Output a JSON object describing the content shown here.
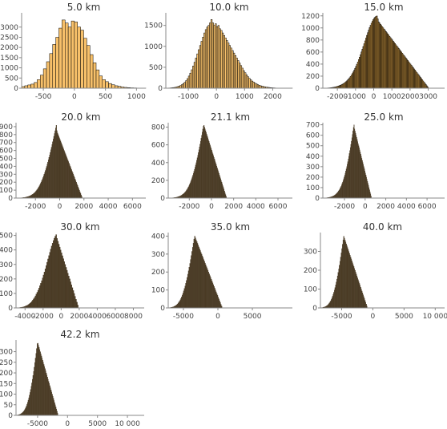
{
  "chart_data": [
    {
      "type": "bar",
      "title": "5.0 km",
      "fill": "#f7c06a",
      "xlim": [
        -850,
        1150
      ],
      "ylim": [
        0,
        3700
      ],
      "xticks": [
        -500,
        0,
        500,
        1000
      ],
      "xtick_labels": [
        "-500",
        "0",
        "500",
        "1000"
      ],
      "yticks": [
        0,
        500,
        1000,
        1500,
        2000,
        2500,
        3000
      ],
      "ytick_labels": [
        "0",
        "500",
        "1000",
        "1500",
        "2000",
        "2500",
        "3000"
      ],
      "bin_start": -850,
      "bin_width": 50,
      "values": [
        80,
        120,
        160,
        200,
        280,
        420,
        640,
        950,
        1300,
        1700,
        2150,
        2500,
        2950,
        3350,
        3200,
        3000,
        3300,
        3250,
        3000,
        2850,
        2450,
        2100,
        1650,
        1250,
        900,
        600,
        420,
        320,
        230,
        170,
        120,
        90,
        60,
        40,
        30,
        20,
        15,
        10,
        6,
        4
      ]
    },
    {
      "type": "bar",
      "title": "10.0 km",
      "fill": "#f7c06a",
      "xlim": [
        -1800,
        2700
      ],
      "ylim": [
        0,
        1800
      ],
      "xticks": [
        -1000,
        0,
        1000,
        2000
      ],
      "xtick_labels": [
        "-1000",
        "0",
        "1000",
        "2000"
      ],
      "yticks": [
        0,
        500,
        1000,
        1500
      ],
      "ytick_labels": [
        "0",
        "500",
        "1000",
        "1500"
      ],
      "bin_start": -1800,
      "bin_width": 50,
      "values": [
        2,
        4,
        6,
        8,
        12,
        16,
        20,
        28,
        38,
        50,
        65,
        85,
        110,
        140,
        180,
        230,
        290,
        360,
        440,
        530,
        620,
        720,
        820,
        920,
        1020,
        1120,
        1220,
        1320,
        1400,
        1460,
        1500,
        1560,
        1640,
        1560,
        1500,
        1540,
        1470,
        1500,
        1420,
        1380,
        1320,
        1260,
        1200,
        1140,
        1080,
        1020,
        960,
        900,
        840,
        780,
        720,
        660,
        600,
        540,
        480,
        420,
        370,
        320,
        275,
        235,
        200,
        170,
        145,
        122,
        102,
        85,
        70,
        58,
        48,
        40,
        33,
        27,
        22,
        18,
        14,
        11,
        9,
        7,
        5,
        4,
        3,
        2,
        2,
        1,
        1,
        1,
        1,
        1,
        1,
        1
      ]
    },
    {
      "type": "bar",
      "title": "15.0 km",
      "fill": "#c9943f",
      "xlim": [
        -2800,
        3900
      ],
      "ylim": [
        0,
        1250
      ],
      "xticks": [
        -2000,
        -1000,
        0,
        1000,
        2000,
        3000
      ],
      "xtick_labels": [
        "-2000",
        "-1000",
        "0",
        "1000",
        "2000",
        "3000"
      ],
      "yticks": [
        0,
        200,
        400,
        600,
        800,
        1000,
        1200
      ],
      "ytick_labels": [
        "0",
        "200",
        "400",
        "600",
        "800",
        "1000",
        "1200"
      ],
      "bin_start": -2800,
      "bin_width": 50,
      "values": [
        1,
        2,
        2,
        3,
        3,
        4,
        5,
        6,
        8,
        10,
        12,
        14,
        17,
        20,
        24,
        28,
        33,
        38,
        44,
        50,
        57,
        65,
        74,
        84,
        95,
        108,
        122,
        138,
        155,
        174,
        195,
        218,
        243,
        270,
        299,
        330,
        363,
        398,
        435,
        474,
        515,
        557,
        601,
        646,
        692,
        738,
        785,
        831,
        877,
        921,
        964,
        1005,
        1043,
        1078,
        1110,
        1137,
        1160,
        1178,
        1191,
        1198,
        1150,
        1100,
        1080,
        1060,
        1040,
        1020,
        1000,
        980,
        960,
        940,
        920,
        900,
        880,
        860,
        840,
        820,
        800,
        780,
        760,
        740,
        720,
        700,
        680,
        660,
        640,
        620,
        600,
        580,
        560,
        540,
        520,
        500,
        480,
        460,
        440,
        420,
        400,
        380,
        360,
        340,
        320,
        300,
        280,
        260,
        240,
        220,
        200,
        180,
        160,
        140,
        120,
        100,
        80,
        60,
        40,
        20
      ]
    },
    {
      "type": "bar",
      "title": "20.0 km",
      "fill": "#4a3b25",
      "xlim": [
        -3600,
        7100
      ],
      "ylim": [
        0,
        950
      ],
      "xticks": [
        -2000,
        0,
        2000,
        4000,
        6000
      ],
      "xtick_labels": [
        "-2000",
        "0",
        "2000",
        "4000",
        "6000"
      ],
      "yticks": [
        0,
        100,
        200,
        300,
        400,
        500,
        600,
        700,
        800,
        900
      ],
      "ytick_labels": [
        "0",
        "100",
        "200",
        "300",
        "400",
        "500",
        "600",
        "700",
        "800",
        "900"
      ],
      "bin_start": -3600,
      "bin_width": 50,
      "values": [
        1,
        1,
        1,
        2,
        2,
        2,
        3,
        3,
        4,
        4,
        5,
        6,
        7,
        8,
        9,
        10,
        12,
        14,
        16,
        18,
        20,
        23,
        26,
        30,
        34,
        38,
        43,
        48,
        54,
        60,
        67,
        75,
        84,
        93,
        103,
        114,
        126,
        139,
        153,
        168,
        184,
        201,
        219,
        238,
        258,
        279,
        301,
        324,
        348,
        373,
        399,
        426,
        454,
        483,
        513,
        544,
        576,
        608,
        641,
        675,
        709,
        744,
        779,
        814,
        849,
        884,
        918,
        850,
        820,
        800,
        780,
        760,
        740,
        720,
        700,
        680,
        660,
        640,
        620,
        600,
        580,
        560,
        540,
        520,
        500,
        480,
        460,
        440,
        420,
        400,
        380,
        360,
        340,
        320,
        300,
        280,
        260,
        240,
        220,
        200,
        180,
        160,
        140,
        120,
        100,
        80,
        60,
        40,
        20,
        1
      ]
    },
    {
      "type": "bar",
      "title": "21.1 km",
      "fill": "#4a3b25",
      "xlim": [
        -3900,
        7300
      ],
      "ylim": [
        0,
        850
      ],
      "xticks": [
        -2000,
        0,
        2000,
        4000,
        6000
      ],
      "xtick_labels": [
        "-2000",
        "0",
        "2000",
        "4000",
        "6000"
      ],
      "yticks": [
        0,
        200,
        400,
        600,
        800
      ],
      "ytick_labels": [
        "0",
        "200",
        "400",
        "600",
        "800"
      ],
      "bin_start": -3900,
      "bin_width": 50,
      "values": [
        1,
        1,
        1,
        2,
        2,
        2,
        3,
        3,
        4,
        4,
        5,
        6,
        7,
        8,
        9,
        10,
        12,
        14,
        16,
        18,
        20,
        23,
        26,
        30,
        34,
        38,
        43,
        48,
        54,
        60,
        67,
        75,
        84,
        93,
        103,
        114,
        126,
        139,
        153,
        168,
        184,
        201,
        219,
        238,
        258,
        279,
        301,
        324,
        348,
        373,
        399,
        426,
        454,
        483,
        513,
        544,
        576,
        608,
        641,
        675,
        709,
        744,
        779,
        812,
        820,
        800,
        780,
        760,
        740,
        720,
        700,
        680,
        660,
        640,
        620,
        600,
        580,
        560,
        540,
        520,
        500,
        480,
        460,
        440,
        420,
        400,
        380,
        360,
        340,
        320,
        300,
        280,
        260,
        240,
        220,
        200,
        180,
        160,
        140,
        120,
        100,
        80,
        60,
        40,
        20,
        1
      ]
    },
    {
      "type": "bar",
      "title": "25.0 km",
      "fill": "#4a3b25",
      "xlim": [
        -4100,
        7700
      ],
      "ylim": [
        0,
        720
      ],
      "xticks": [
        -2000,
        0,
        2000,
        4000,
        6000
      ],
      "xtick_labels": [
        "-2000",
        "0",
        "2000",
        "4000",
        "6000"
      ],
      "yticks": [
        0,
        100,
        200,
        300,
        400,
        500,
        600,
        700
      ],
      "ytick_labels": [
        "0",
        "100",
        "200",
        "300",
        "400",
        "500",
        "600",
        "700"
      ],
      "bin_start": -4100,
      "bin_width": 50,
      "values": [
        1,
        1,
        1,
        2,
        2,
        2,
        3,
        3,
        4,
        4,
        5,
        6,
        7,
        8,
        9,
        10,
        12,
        14,
        16,
        18,
        20,
        23,
        26,
        30,
        34,
        38,
        43,
        48,
        54,
        60,
        67,
        75,
        84,
        93,
        103,
        114,
        126,
        139,
        153,
        168,
        184,
        201,
        219,
        238,
        258,
        279,
        301,
        324,
        348,
        373,
        399,
        426,
        454,
        483,
        513,
        544,
        576,
        608,
        641,
        675,
        700,
        660,
        640,
        620,
        600,
        580,
        560,
        540,
        520,
        500,
        480,
        460,
        440,
        420,
        400,
        380,
        360,
        340,
        320,
        300,
        280,
        260,
        240,
        220,
        200,
        180,
        160,
        140,
        120,
        100,
        80,
        60,
        40,
        20,
        1
      ]
    },
    {
      "type": "bar",
      "title": "30.0 km",
      "fill": "#4a3b25",
      "xlim": [
        -5000,
        9200
      ],
      "ylim": [
        0,
        520
      ],
      "xticks": [
        -4000,
        -2000,
        0,
        2000,
        4000,
        6000,
        8000
      ],
      "xtick_labels": [
        "-4000",
        "-2000",
        "0",
        "2000",
        "4000",
        "6000",
        "8000"
      ],
      "yticks": [
        0,
        100,
        200,
        300,
        400,
        500
      ],
      "ytick_labels": [
        "0",
        "100",
        "200",
        "300",
        "400",
        "500"
      ],
      "bin_start": -5000,
      "bin_width": 100,
      "values": [
        1,
        1,
        2,
        2,
        3,
        4,
        5,
        6,
        8,
        10,
        12,
        15,
        18,
        22,
        27,
        32,
        38,
        45,
        53,
        62,
        72,
        83,
        95,
        108,
        122,
        137,
        153,
        170,
        188,
        207,
        227,
        248,
        270,
        292,
        315,
        338,
        361,
        384,
        406,
        427,
        447,
        465,
        481,
        495,
        506,
        480,
        460,
        440,
        420,
        400,
        380,
        360,
        340,
        320,
        300,
        280,
        260,
        240,
        220,
        200,
        180,
        160,
        140,
        120,
        100,
        80,
        60,
        40,
        20,
        1
      ]
    },
    {
      "type": "bar",
      "title": "35.0 km",
      "fill": "#4a3b25",
      "xlim": [
        -7200,
        10800
      ],
      "ylim": [
        0,
        420
      ],
      "xticks": [
        -5000,
        0,
        5000
      ],
      "xtick_labels": [
        "-5000",
        "0",
        "5000"
      ],
      "yticks": [
        0,
        100,
        200,
        300,
        400
      ],
      "ytick_labels": [
        "0",
        "100",
        "200",
        "300",
        "400"
      ],
      "bin_start": -7200,
      "bin_width": 100,
      "values": [
        1,
        1,
        2,
        2,
        3,
        4,
        5,
        6,
        8,
        10,
        12,
        15,
        18,
        22,
        27,
        32,
        38,
        45,
        53,
        62,
        72,
        83,
        95,
        108,
        122,
        137,
        153,
        170,
        188,
        207,
        227,
        248,
        270,
        292,
        315,
        338,
        361,
        384,
        400,
        390,
        380,
        370,
        360,
        350,
        340,
        330,
        320,
        310,
        300,
        290,
        280,
        270,
        260,
        250,
        240,
        230,
        220,
        210,
        200,
        190,
        180,
        170,
        160,
        150,
        140,
        130,
        120,
        110,
        100,
        90,
        80,
        70,
        60,
        50,
        40,
        30,
        20,
        10,
        1
      ]
    },
    {
      "type": "bar",
      "title": "40.0 km",
      "fill": "#4a3b25",
      "xlim": [
        -8400,
        11500
      ],
      "ylim": [
        0,
        400
      ],
      "xticks": [
        -5000,
        0,
        5000,
        10000
      ],
      "xtick_labels": [
        "-5000",
        "0",
        "5000",
        "10 000"
      ],
      "yticks": [
        0,
        100,
        200,
        300
      ],
      "ytick_labels": [
        "0",
        "100",
        "200",
        "300"
      ],
      "bin_start": -8400,
      "bin_width": 100,
      "values": [
        1,
        1,
        2,
        2,
        3,
        4,
        5,
        6,
        8,
        10,
        12,
        15,
        18,
        22,
        27,
        32,
        38,
        45,
        53,
        62,
        72,
        83,
        95,
        108,
        122,
        137,
        153,
        170,
        188,
        207,
        227,
        248,
        270,
        292,
        315,
        338,
        361,
        380,
        370,
        360,
        350,
        340,
        330,
        320,
        310,
        300,
        290,
        280,
        270,
        260,
        250,
        240,
        230,
        220,
        210,
        200,
        190,
        180,
        170,
        160,
        150,
        140,
        130,
        120,
        110,
        100,
        90,
        80,
        70,
        60,
        50,
        40,
        30,
        20,
        10,
        1
      ]
    },
    {
      "type": "bar",
      "title": "42.2 km",
      "fill": "#4a3b25",
      "xlim": [
        -8600,
        12800
      ],
      "ylim": [
        0,
        355
      ],
      "xticks": [
        -5000,
        0,
        5000,
        10000
      ],
      "xtick_labels": [
        "-5000",
        "0",
        "5000",
        "10 000"
      ],
      "yticks": [
        0,
        50,
        100,
        150,
        200,
        250,
        300
      ],
      "ytick_labels": [
        "0",
        "50",
        "100",
        "150",
        "200",
        "250",
        "300"
      ],
      "bin_start": -8600,
      "bin_width": 100,
      "values": [
        1,
        1,
        2,
        2,
        3,
        4,
        5,
        6,
        8,
        10,
        12,
        15,
        18,
        22,
        27,
        32,
        38,
        45,
        53,
        62,
        72,
        83,
        95,
        108,
        122,
        137,
        153,
        170,
        188,
        207,
        227,
        248,
        270,
        292,
        315,
        338,
        340,
        330,
        320,
        310,
        300,
        290,
        280,
        270,
        260,
        250,
        240,
        230,
        220,
        210,
        200,
        190,
        180,
        170,
        160,
        150,
        140,
        130,
        120,
        110,
        100,
        90,
        80,
        70,
        60,
        50,
        40,
        30,
        20,
        10,
        1
      ]
    }
  ]
}
